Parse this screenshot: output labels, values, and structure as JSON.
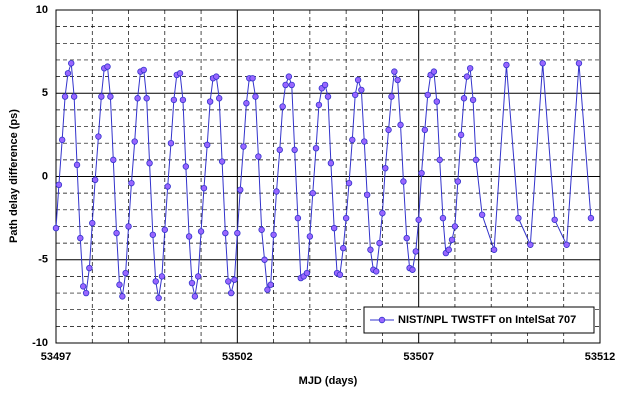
{
  "chart_data": {
    "type": "line",
    "xlabel": "MJD (days)",
    "ylabel": "Path delay difference (ps)",
    "xlim": [
      53497,
      53512
    ],
    "xticks": [
      53497,
      53502,
      53507,
      53512
    ],
    "xminorticks": [
      53498,
      53499,
      53500,
      53501,
      53503,
      53504,
      53505,
      53506,
      53508,
      53509,
      53510,
      53511
    ],
    "ylim": [
      -10,
      10
    ],
    "yticks": [
      -10,
      -5,
      0,
      5,
      10
    ],
    "yminorticks": [
      -9,
      -8,
      -7,
      -6,
      -4,
      -3,
      -2,
      -1,
      1,
      2,
      3,
      4,
      6,
      7,
      8,
      9
    ],
    "grid": true,
    "legend": "lower right",
    "x": [
      53497,
      53497.08,
      53497.17,
      53497.25,
      53497.33,
      53497.42,
      53497.5,
      53497.58,
      53497.67,
      53497.75,
      53497.83,
      53497.92,
      53498,
      53498.08,
      53498.17,
      53498.25,
      53498.33,
      53498.42,
      53498.5,
      53498.58,
      53498.67,
      53498.75,
      53498.83,
      53498.92,
      53499,
      53499.08,
      53499.17,
      53499.25,
      53499.33,
      53499.42,
      53499.5,
      53499.58,
      53499.67,
      53499.75,
      53499.83,
      53499.92,
      53500,
      53500.08,
      53500.17,
      53500.25,
      53500.33,
      53500.42,
      53500.5,
      53500.58,
      53500.67,
      53500.75,
      53500.83,
      53500.92,
      53501,
      53501.08,
      53501.17,
      53501.25,
      53501.33,
      53501.42,
      53501.5,
      53501.58,
      53501.67,
      53501.75,
      53501.83,
      53501.92,
      53502,
      53502.08,
      53502.17,
      53502.25,
      53502.33,
      53502.42,
      53502.5,
      53502.58,
      53502.67,
      53502.75,
      53502.83,
      53502.92,
      53503,
      53503.08,
      53503.17,
      53503.25,
      53503.33,
      53503.42,
      53503.5,
      53503.58,
      53503.67,
      53503.75,
      53503.83,
      53503.92,
      53504,
      53504.08,
      53504.17,
      53504.25,
      53504.33,
      53504.42,
      53504.5,
      53504.58,
      53504.67,
      53504.75,
      53504.83,
      53504.92,
      53505,
      53505.08,
      53505.17,
      53505.25,
      53505.33,
      53505.42,
      53505.5,
      53505.58,
      53505.67,
      53505.75,
      53505.83,
      53505.92,
      53506,
      53506.08,
      53506.17,
      53506.25,
      53506.33,
      53506.42,
      53506.5,
      53506.58,
      53506.67,
      53506.75,
      53506.83,
      53506.92,
      53507,
      53507.08,
      53507.17,
      53507.25,
      53507.33,
      53507.42,
      53507.5,
      53507.58,
      53507.67,
      53507.75,
      53507.83,
      53507.92,
      53508,
      53508.08,
      53508.17,
      53508.25,
      53508.33,
      53508.42,
      53508.5,
      53508.58,
      53508.75,
      53509.08,
      53509.42,
      53509.75,
      53510.08,
      53510.42,
      53510.75,
      53511.08,
      53511.42,
      53511.75
    ],
    "series": [
      {
        "name": "NIST/NPL TWSTFT on IntelSat 707",
        "color": "#3333cc",
        "marker_color": "#9966ff",
        "values": [
          -3.1,
          -0.5,
          2.2,
          4.8,
          6.2,
          6.8,
          4.8,
          0.7,
          -3.7,
          -6.6,
          -7.0,
          -5.5,
          -2.8,
          -0.2,
          2.4,
          4.8,
          6.5,
          6.6,
          4.8,
          1.0,
          -3.4,
          -6.5,
          -7.2,
          -5.8,
          -3.0,
          -0.4,
          2.1,
          4.7,
          6.3,
          6.4,
          4.7,
          0.8,
          -3.5,
          -6.3,
          -7.3,
          -6.0,
          -3.2,
          -0.6,
          2.0,
          4.6,
          6.1,
          6.2,
          4.6,
          0.6,
          -3.6,
          -6.4,
          -7.2,
          -6.0,
          -3.3,
          -0.7,
          1.9,
          4.5,
          5.9,
          6.0,
          4.7,
          0.9,
          -3.4,
          -6.3,
          -7.0,
          -6.2,
          -3.4,
          -0.8,
          1.8,
          4.4,
          5.9,
          5.9,
          4.8,
          1.2,
          -3.2,
          -5.0,
          -6.8,
          -6.5,
          -3.5,
          -0.9,
          1.6,
          4.2,
          5.5,
          6.0,
          5.5,
          1.6,
          -2.5,
          -6.1,
          -6.0,
          -5.8,
          -3.6,
          -1.0,
          1.7,
          4.3,
          5.3,
          5.5,
          4.8,
          0.8,
          -3.1,
          -5.8,
          -5.9,
          -4.3,
          -2.5,
          -0.4,
          2.2,
          4.9,
          5.8,
          5.2,
          2.1,
          -1.1,
          -4.4,
          -5.6,
          -5.7,
          -4.0,
          -2.2,
          0.5,
          2.8,
          4.8,
          6.3,
          5.8,
          3.1,
          -0.3,
          -3.7,
          -5.5,
          -5.6,
          -4.5,
          -2.6,
          0.2,
          2.8,
          4.9,
          6.1,
          6.3,
          4.5,
          1.0,
          -2.5,
          -4.6,
          -4.4,
          -3.8,
          -3.0,
          -0.3,
          2.5,
          4.7,
          6.0,
          6.5,
          4.6,
          1.0,
          -2.3,
          -4.4,
          6.7,
          -2.5,
          -4.1,
          6.8,
          -2.6,
          -4.1,
          6.8,
          -2.5
        ]
      }
    ]
  }
}
